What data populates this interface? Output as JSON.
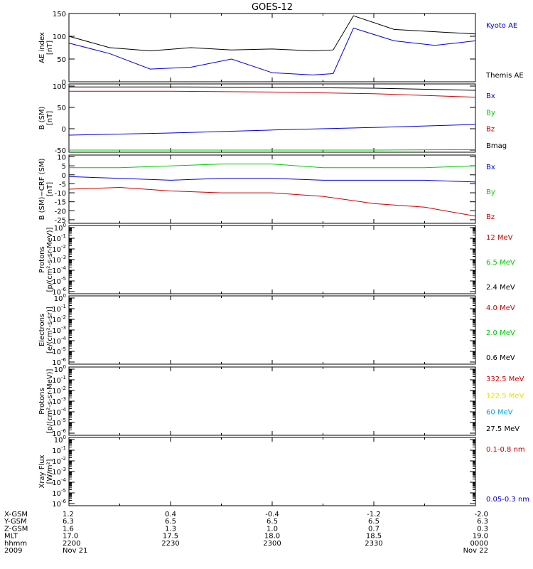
{
  "title": "GOES-12",
  "colors": {
    "black": "#000000",
    "red": "#cc0000",
    "green": "#00cc00",
    "blue": "#0000dd",
    "yellow": "#f0e000",
    "cyan": "#00a8e8"
  },
  "chart_data": [
    {
      "type": "line",
      "ylabel": [
        "AE index",
        "[nT]"
      ],
      "ylim": [
        0,
        150
      ],
      "yscale": "linear",
      "yticks": [
        0,
        50,
        100,
        150
      ],
      "x": [
        22.0,
        22.2,
        22.4,
        22.6,
        22.8,
        23.0,
        23.2,
        23.3,
        23.4,
        23.6,
        23.8,
        24.0
      ],
      "series": [
        {
          "name": "Kyoto AE",
          "color": "#0000dd",
          "values": [
            85,
            62,
            28,
            32,
            50,
            20,
            15,
            18,
            118,
            90,
            80,
            90
          ]
        },
        {
          "name": "Themis AE",
          "color": "#000000",
          "values": [
            100,
            75,
            68,
            75,
            70,
            72,
            68,
            70,
            145,
            115,
            110,
            105
          ]
        }
      ]
    },
    {
      "type": "line",
      "ylabel": [
        "B (SM)",
        "[nT]"
      ],
      "ylim": [
        -55,
        105
      ],
      "yscale": "linear",
      "yticks": [
        -50,
        0,
        50,
        100
      ],
      "x": [
        22.0,
        22.5,
        23.0,
        23.5,
        24.0
      ],
      "series": [
        {
          "name": "Bx",
          "color": "#0000dd",
          "values": [
            -15,
            -10,
            -3,
            3,
            10
          ]
        },
        {
          "name": "By",
          "color": "#00cc00",
          "values": [
            -50,
            -50,
            -50,
            -50,
            -49
          ]
        },
        {
          "name": "Bz",
          "color": "#cc0000",
          "values": [
            88,
            88,
            86,
            82,
            74
          ]
        },
        {
          "name": "Bmag",
          "color": "#000000",
          "values": [
            98,
            98,
            97,
            95,
            90
          ]
        }
      ]
    },
    {
      "type": "line",
      "ylabel": [
        "B (SM)−CRF (SM)",
        "[nT]"
      ],
      "ylim": [
        -27,
        11
      ],
      "yscale": "linear",
      "yticks": [
        10,
        5,
        0,
        -5,
        -10,
        -15,
        -20,
        -25
      ],
      "x": [
        22.0,
        22.25,
        22.5,
        22.75,
        23.0,
        23.25,
        23.5,
        23.75,
        24.0
      ],
      "series": [
        {
          "name": "Bx",
          "color": "#0000dd",
          "values": [
            -1,
            -2,
            -3,
            -2,
            -2,
            -3,
            -3,
            -3,
            -4
          ]
        },
        {
          "name": "By",
          "color": "#00cc00",
          "values": [
            4,
            4,
            5,
            6,
            6,
            4,
            4,
            4,
            5
          ]
        },
        {
          "name": "Bz",
          "color": "#cc0000",
          "values": [
            -8,
            -7,
            -9,
            -10,
            -10,
            -12,
            -16,
            -18,
            -23
          ]
        }
      ]
    },
    {
      "type": "line",
      "ylabel": [
        "Protons",
        "[p/(cm²-s-sr-MeV)]"
      ],
      "yscale": "log",
      "ylim_exp": [
        -6,
        0
      ],
      "series": [
        {
          "name": "12 MeV",
          "color": "#cc0000"
        },
        {
          "name": "6.5 MeV",
          "color": "#00cc00"
        },
        {
          "name": "2.4 MeV",
          "color": "#000000"
        }
      ]
    },
    {
      "type": "line",
      "ylabel": [
        "Electrons",
        "[e/(cm²-s-sr)]"
      ],
      "yscale": "log",
      "ylim_exp": [
        -6,
        0
      ],
      "series": [
        {
          "name": "4.0 MeV",
          "color": "#cc0000"
        },
        {
          "name": "2.0 MeV",
          "color": "#00cc00"
        },
        {
          "name": "0.6 MeV",
          "color": "#000000"
        }
      ]
    },
    {
      "type": "line",
      "ylabel": [
        "Protons",
        "[p/(cm²-s-sr-MeV)]"
      ],
      "yscale": "log",
      "ylim_exp": [
        -6,
        0
      ],
      "series": [
        {
          "name": "332.5 MeV",
          "color": "#cc0000"
        },
        {
          "name": "122.5 MeV",
          "color": "#f0e000"
        },
        {
          "name": "60 MeV",
          "color": "#00a8e8"
        },
        {
          "name": "27.5 MeV",
          "color": "#000000"
        }
      ]
    },
    {
      "type": "line",
      "ylabel": [
        "Xray Flux",
        "[W/m²]"
      ],
      "yscale": "log",
      "ylim_exp": [
        -6,
        0
      ],
      "series": [
        {
          "name": "0.1-0.8 nm",
          "color": "#cc0000"
        },
        {
          "name": "0.05-0.3 nm",
          "color": "#0000dd"
        }
      ]
    }
  ],
  "xaxis": {
    "range": [
      22.0,
      24.0
    ],
    "row_labels": [
      "X-GSM",
      "Y-GSM",
      "Z-GSM",
      "MLT",
      "hhmm",
      "2009"
    ],
    "columns": [
      {
        "x": 22.0,
        "values": [
          "1.2",
          "6.3",
          "1.6",
          "17.0",
          "2200",
          "Nov 21"
        ]
      },
      {
        "x": 22.5,
        "values": [
          "0.4",
          "6.5",
          "1.3",
          "17.5",
          "2230",
          ""
        ]
      },
      {
        "x": 23.0,
        "values": [
          "-0.4",
          "6.5",
          "1.0",
          "18.0",
          "2300",
          ""
        ]
      },
      {
        "x": 23.5,
        "values": [
          "-1.2",
          "6.5",
          "0.7",
          "18.5",
          "2330",
          ""
        ]
      },
      {
        "x": 24.0,
        "values": [
          "-2.0",
          "6.3",
          "0.3",
          "19.0",
          "0000",
          "Nov 22"
        ]
      }
    ]
  }
}
